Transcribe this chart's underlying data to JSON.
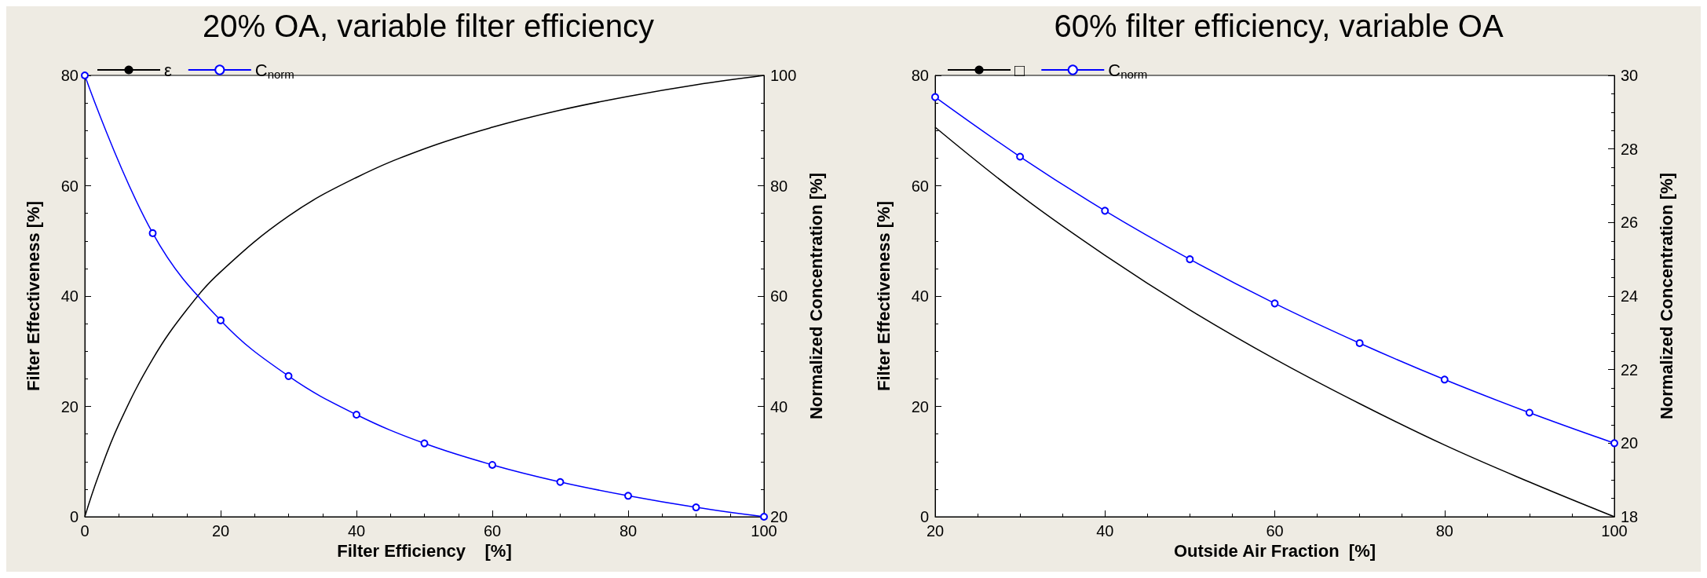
{
  "chart_data": [
    {
      "type": "line",
      "title": "20% OA, variable filter efficiency",
      "xlabel": "Filter Efficiency    [%]",
      "ylabel": "Filter Effectiveness [%]",
      "y2label": "Normalized Concentration [%]",
      "xlim": [
        0,
        100
      ],
      "xticks": [
        0,
        20,
        40,
        60,
        80,
        100
      ],
      "ylim": [
        0,
        80
      ],
      "yticks": [
        0,
        20,
        40,
        60,
        80
      ],
      "y2lim": [
        20,
        100
      ],
      "y2ticks": [
        20,
        40,
        60,
        80,
        100
      ],
      "legend": "top left",
      "series": [
        {
          "name": "ε",
          "color": "#000000",
          "marker": "none",
          "x": [
            0,
            2,
            5,
            10,
            15,
            20,
            30,
            40,
            50,
            60,
            70,
            80,
            90,
            100
          ],
          "values": [
            0,
            7.4,
            16.7,
            28.6,
            37.5,
            44.4,
            54.5,
            61.5,
            66.7,
            70.6,
            73.7,
            76.2,
            78.3,
            80
          ]
        },
        {
          "name": "C$_{norm}$",
          "color": "#0000ff",
          "marker": "circle",
          "axis": "y2",
          "x": [
            0,
            10,
            20,
            30,
            40,
            50,
            60,
            70,
            80,
            90,
            100
          ],
          "values": [
            100,
            71.4,
            55.6,
            45.5,
            38.5,
            33.3,
            29.4,
            26.3,
            23.8,
            21.7,
            20
          ]
        }
      ]
    },
    {
      "type": "line",
      "title": "60% filter efficiency, variable OA",
      "xlabel": "Outside Air Fraction  [%]",
      "ylabel": "Filter Effectiveness [%]",
      "y2label": "Normalized Concentration [%]",
      "xlim": [
        20,
        100
      ],
      "xticks": [
        20,
        40,
        60,
        80,
        100
      ],
      "ylim": [
        0,
        80
      ],
      "yticks": [
        0,
        20,
        40,
        60,
        80
      ],
      "y2lim": [
        18,
        30
      ],
      "y2ticks": [
        18,
        20,
        22,
        24,
        26,
        28,
        30
      ],
      "legend": "top left",
      "series": [
        {
          "name": "□",
          "color": "#000000",
          "marker": "none",
          "x": [
            20,
            30,
            40,
            50,
            60,
            70,
            80,
            90,
            100
          ],
          "values": [
            70.6,
            58.3,
            47.4,
            37.5,
            28.6,
            20.5,
            13.0,
            6.3,
            0
          ]
        },
        {
          "name": "C$_{norm}$",
          "color": "#0000ff",
          "marker": "circle",
          "axis": "y2",
          "x": [
            20,
            30,
            40,
            50,
            60,
            70,
            80,
            90,
            100
          ],
          "values": [
            29.41,
            27.79,
            26.32,
            25.0,
            23.8,
            22.72,
            21.73,
            20.83,
            20.0
          ]
        }
      ]
    }
  ]
}
